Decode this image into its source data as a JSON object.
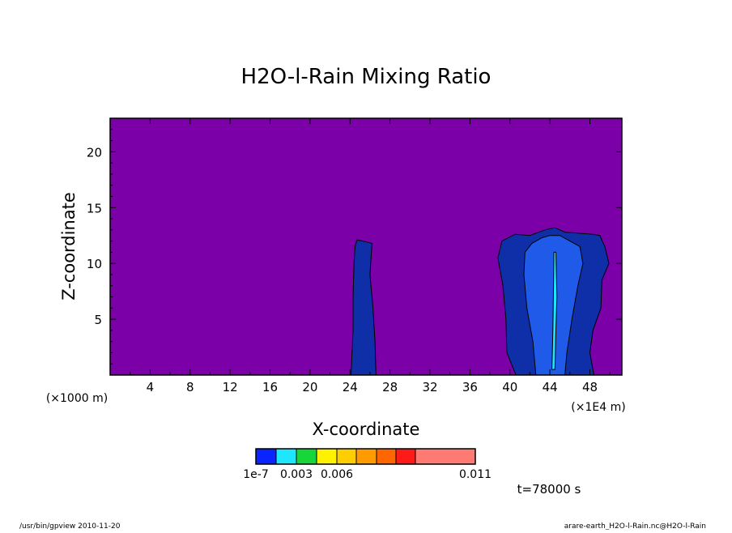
{
  "chart_data": {
    "type": "heatmap",
    "title": "H2O-l-Rain Mixing Ratio",
    "xlabel": "X-coordinate",
    "ylabel": "Z-coordinate",
    "x_unit": "(×1E4 m)",
    "y_unit": "(×1000 m)",
    "x_ticks": [
      4,
      8,
      12,
      16,
      20,
      24,
      28,
      32,
      36,
      40,
      44,
      48
    ],
    "y_ticks": [
      5,
      10,
      15,
      20
    ],
    "xlim": [
      0,
      51.2
    ],
    "ylim": [
      0,
      23
    ],
    "grid": false,
    "background_color": "#7b00a8",
    "colorbar": {
      "colors": [
        "#0a24ff",
        "#1ee6ff",
        "#16d63a",
        "#fff200",
        "#ffce00",
        "#ff9a00",
        "#ff6600",
        "#ff1a1a",
        "#ff7a72"
      ],
      "labels": [
        "1e-7",
        "0.003",
        "0.006",
        "0.011"
      ],
      "label_positions": [
        0,
        2,
        4,
        8
      ]
    },
    "regions": [
      {
        "name": "thin-column",
        "level": 0,
        "points": [
          [
            24.1,
            0
          ],
          [
            24.3,
            4
          ],
          [
            24.3,
            7
          ],
          [
            24.4,
            10
          ],
          [
            24.5,
            11.5
          ],
          [
            24.7,
            12.1
          ],
          [
            25.3,
            12
          ],
          [
            26.2,
            11.8
          ],
          [
            26.0,
            9
          ],
          [
            26.3,
            6
          ],
          [
            26.5,
            3
          ],
          [
            26.6,
            0
          ]
        ]
      },
      {
        "name": "main-cloud-outer",
        "level": 0,
        "points": [
          [
            40.6,
            0
          ],
          [
            39.7,
            2
          ],
          [
            39.6,
            5
          ],
          [
            39.3,
            8
          ],
          [
            38.8,
            10.5
          ],
          [
            39.2,
            12
          ],
          [
            40.5,
            12.6
          ],
          [
            42.0,
            12.5
          ],
          [
            43.5,
            13
          ],
          [
            44.5,
            13.2
          ],
          [
            45.5,
            12.8
          ],
          [
            47.0,
            12.7
          ],
          [
            48.3,
            12.6
          ],
          [
            49.0,
            12.5
          ],
          [
            49.5,
            11.5
          ],
          [
            49.9,
            10
          ],
          [
            49.2,
            8.5
          ],
          [
            49.1,
            6
          ],
          [
            48.3,
            4
          ],
          [
            48.0,
            2
          ],
          [
            48.4,
            0
          ]
        ]
      },
      {
        "name": "main-cloud-inner",
        "level": 0,
        "points": [
          [
            42.6,
            0
          ],
          [
            42.3,
            3
          ],
          [
            41.7,
            6
          ],
          [
            41.4,
            9
          ],
          [
            41.5,
            11
          ],
          [
            42.2,
            11.8
          ],
          [
            43.2,
            12.3
          ],
          [
            44.0,
            12.5
          ],
          [
            45.0,
            12.5
          ],
          [
            46.0,
            12.0
          ],
          [
            47.0,
            11.5
          ],
          [
            47.3,
            10
          ],
          [
            46.8,
            8
          ],
          [
            46.2,
            5
          ],
          [
            45.7,
            2
          ],
          [
            45.5,
            0
          ]
        ]
      },
      {
        "name": "core-light",
        "level": 1,
        "points": [
          [
            44.2,
            0.5
          ],
          [
            44.3,
            4
          ],
          [
            44.35,
            7
          ],
          [
            44.4,
            11
          ],
          [
            44.6,
            11
          ],
          [
            44.7,
            7
          ],
          [
            44.6,
            4
          ],
          [
            44.5,
            0.5
          ]
        ]
      }
    ]
  },
  "time_label": "t=78000 s",
  "footer": {
    "left": "/usr/bin/gpview   2010-11-20",
    "right": "arare-earth_H2O-l-Rain.nc@H2O-l-Rain"
  }
}
